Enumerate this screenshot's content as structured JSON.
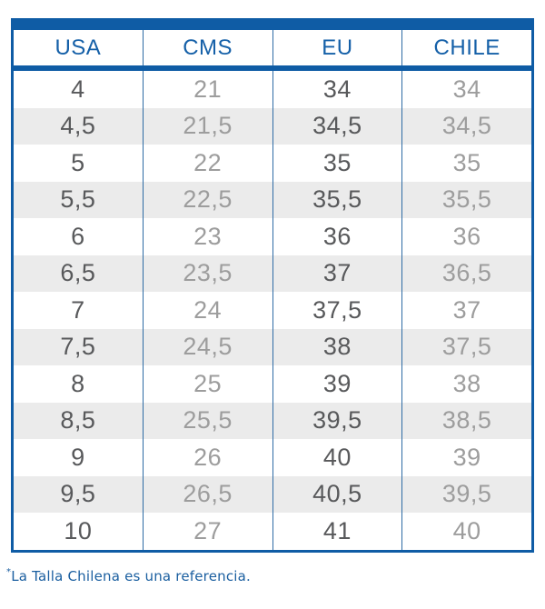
{
  "table": {
    "columns": [
      {
        "key": "usa",
        "label": "USA"
      },
      {
        "key": "cms",
        "label": "CMS"
      },
      {
        "key": "eu",
        "label": "EU"
      },
      {
        "key": "chile",
        "label": "CHILE"
      }
    ],
    "rows": [
      [
        "4",
        "21",
        "34",
        "34"
      ],
      [
        "4,5",
        "21,5",
        "34,5",
        "34,5"
      ],
      [
        "5",
        "22",
        "35",
        "35"
      ],
      [
        "5,5",
        "22,5",
        "35,5",
        "35,5"
      ],
      [
        "6",
        "23",
        "36",
        "36"
      ],
      [
        "6,5",
        "23,5",
        "37",
        "36,5"
      ],
      [
        "7",
        "24",
        "37,5",
        "37"
      ],
      [
        "7,5",
        "24,5",
        "38",
        "37,5"
      ],
      [
        "8",
        "25",
        "39",
        "38"
      ],
      [
        "8,5",
        "25,5",
        "39,5",
        "38,5"
      ],
      [
        "9",
        "26",
        "40",
        "39"
      ],
      [
        "9,5",
        "26,5",
        "40,5",
        "39,5"
      ],
      [
        "10",
        "27",
        "41",
        "40"
      ]
    ]
  },
  "footnote": {
    "asterisk": "*",
    "text": "La Talla Chilena es una referencia."
  },
  "colors": {
    "accent_blue": "#0F5CA5",
    "header_text": "#1560A8",
    "dark_value": "#58595B",
    "light_value": "#9D9D9D",
    "alt_row_bg": "#EBEBEB",
    "divider": "#2E6BA4",
    "footnote_text": "#1B5FA0"
  },
  "chart_data": {
    "type": "table",
    "title": "Shoe size conversion chart",
    "columns": [
      "USA",
      "CMS",
      "EU",
      "CHILE"
    ],
    "rows": [
      [
        "4",
        "21",
        "34",
        "34"
      ],
      [
        "4,5",
        "21,5",
        "34,5",
        "34,5"
      ],
      [
        "5",
        "22",
        "35",
        "35"
      ],
      [
        "5,5",
        "22,5",
        "35,5",
        "35,5"
      ],
      [
        "6",
        "23",
        "36",
        "36"
      ],
      [
        "6,5",
        "23,5",
        "37",
        "36,5"
      ],
      [
        "7",
        "24",
        "37,5",
        "37"
      ],
      [
        "7,5",
        "24,5",
        "38",
        "37,5"
      ],
      [
        "8",
        "25",
        "39",
        "38"
      ],
      [
        "8,5",
        "25,5",
        "39,5",
        "38,5"
      ],
      [
        "9",
        "26",
        "40",
        "39"
      ],
      [
        "9,5",
        "26,5",
        "40,5",
        "39,5"
      ],
      [
        "10",
        "27",
        "41",
        "40"
      ]
    ],
    "footnote": "*La Talla Chilena es una referencia.",
    "layout_hints": {
      "alternating_row_shading": true,
      "dark_text_columns": [
        "USA",
        "EU"
      ],
      "light_text_columns": [
        "CMS",
        "CHILE"
      ]
    }
  }
}
